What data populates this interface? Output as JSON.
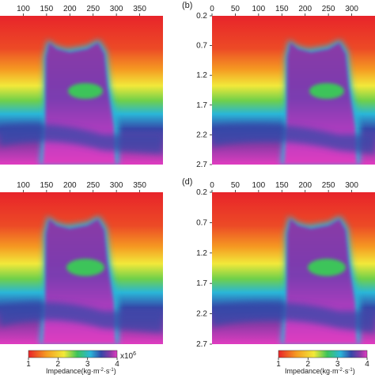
{
  "chart_data": [
    {
      "type": "heatmap",
      "panel": "a",
      "x_ticks": [
        100,
        150,
        200,
        250,
        300,
        350
      ],
      "y_ticks": [],
      "xlim": [
        50,
        400
      ],
      "ylim": [
        2.7,
        0.2
      ]
    },
    {
      "type": "heatmap",
      "panel": "b",
      "panel_label": "(b)",
      "x_ticks": [
        0,
        50,
        100,
        150,
        200,
        250,
        300
      ],
      "y_ticks": [
        "0.2",
        "0.7",
        "1.2",
        "1.7",
        "2.2",
        "2.7"
      ],
      "xlim": [
        0,
        350
      ],
      "ylim": [
        2.7,
        0.2
      ]
    },
    {
      "type": "heatmap",
      "panel": "c",
      "x_ticks": [
        100,
        150,
        200,
        250,
        300,
        350
      ],
      "y_ticks": [],
      "xlim": [
        50,
        400
      ],
      "ylim": [
        2.7,
        0.2
      ]
    },
    {
      "type": "heatmap",
      "panel": "d",
      "panel_label": "(d)",
      "x_ticks": [
        0,
        50,
        100,
        150,
        200,
        250,
        300
      ],
      "y_ticks": [
        "0.2",
        "0.7",
        "1.2",
        "1.7",
        "2.2",
        "2.7"
      ],
      "xlim": [
        0,
        350
      ],
      "ylim": [
        2.7,
        0.2
      ]
    }
  ],
  "colorbar_left": {
    "ticks": [
      "1",
      "2",
      "3",
      "4"
    ],
    "multiplier": "x10",
    "exponent": "6",
    "label_prefix": "Impedance(kg·m",
    "label_mid": "·s",
    "label_suffix": ")",
    "exp1": "-2",
    "exp2": "-1",
    "range": [
      1,
      4
    ]
  },
  "colorbar_right": {
    "ticks": [
      "1",
      "2",
      "3",
      "4"
    ],
    "label_prefix": "Impedance(kg·m",
    "label_mid": "·s",
    "label_suffix": ")",
    "exp1": "-2",
    "exp2": "-1",
    "range": [
      1,
      4
    ]
  },
  "colors": {
    "red": "#e8242a",
    "orange": "#f59a22",
    "yellow": "#f2e93a",
    "green": "#3cc45a",
    "cyan": "#2ab6d8",
    "blue": "#3548a8",
    "violet": "#8a3aa6",
    "magenta": "#e03cc0"
  }
}
